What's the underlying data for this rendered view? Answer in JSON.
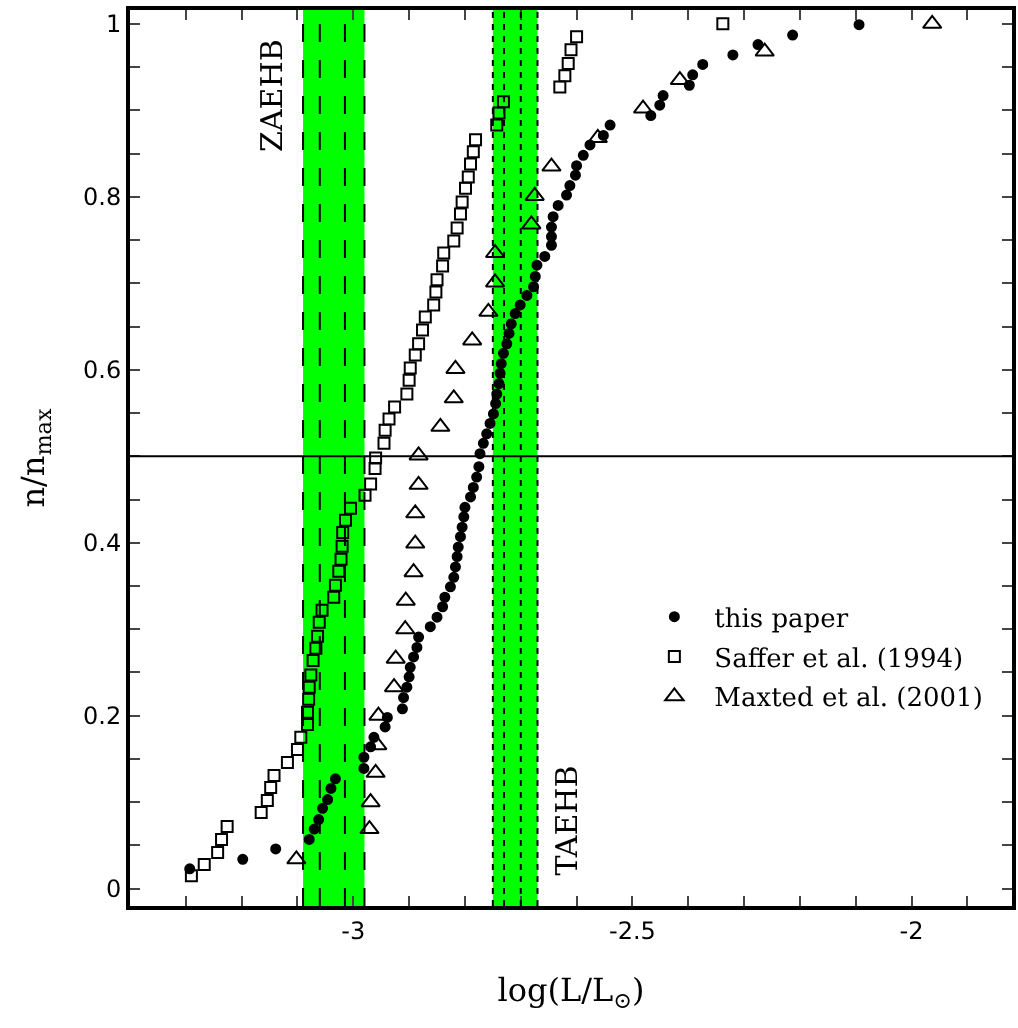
{
  "chart_data": {
    "type": "scatter",
    "xlabel": "log(L/L$_{⊙}$)",
    "ylabel": "n/n$_{max}$",
    "xlim": [
      -3.4,
      -1.82
    ],
    "ylim": [
      -0.02,
      1.016
    ],
    "xticks": [
      {
        "value": -3.4,
        "label": null
      },
      {
        "value": -3.3,
        "label": null
      },
      {
        "value": -3.2,
        "label": null
      },
      {
        "value": -3.1,
        "label": null
      },
      -3,
      {
        "value": -2.9,
        "label": null
      },
      {
        "value": -2.8,
        "label": null
      },
      {
        "value": -2.7,
        "label": null
      },
      {
        "value": -2.6,
        "label": null
      },
      -2.5,
      {
        "value": -2.4,
        "label": null
      },
      {
        "value": -2.3,
        "label": null
      },
      {
        "value": -2.2,
        "label": null
      },
      {
        "value": -2.1,
        "label": null
      },
      -2,
      {
        "value": -1.9,
        "label": null
      }
    ],
    "yticks": [
      0,
      {
        "value": 0.05,
        "label": null
      },
      {
        "value": 0.1,
        "label": null
      },
      {
        "value": 0.15,
        "label": null
      },
      0.2,
      {
        "value": 0.25,
        "label": null
      },
      {
        "value": 0.3,
        "label": null
      },
      {
        "value": 0.35,
        "label": null
      },
      0.4,
      {
        "value": 0.45,
        "label": null
      },
      {
        "value": 0.5,
        "label": null
      },
      {
        "value": 0.55,
        "label": null
      },
      0.6,
      {
        "value": 0.65,
        "label": null
      },
      {
        "value": 0.7,
        "label": null
      },
      {
        "value": 0.75,
        "label": null
      },
      0.8,
      {
        "value": 0.85,
        "label": null
      },
      {
        "value": 0.9,
        "label": null
      },
      {
        "value": 0.95,
        "label": null
      },
      1
    ],
    "grid": false,
    "legend": "bottom right",
    "bands": [
      {
        "axis": "x",
        "from": -3.09,
        "to": -2.98,
        "label": "ZAEHB",
        "color": "#00ff00"
      },
      {
        "axis": "x",
        "from": -2.75,
        "to": -2.67,
        "label": "TAEHB",
        "color": "#00ff00"
      }
    ],
    "ref_lines": [
      {
        "axis": "y",
        "value": 0.5,
        "line_style": "solid"
      },
      {
        "axis": "x",
        "value": -3.09,
        "line_style": "dashed"
      },
      {
        "axis": "x",
        "value": -3.06,
        "line_style": "dashed"
      },
      {
        "axis": "x",
        "value": -3.015,
        "line_style": "dashed"
      },
      {
        "axis": "x",
        "value": -2.98,
        "line_style": "dashed"
      },
      {
        "axis": "x",
        "value": -2.75,
        "line_style": "dotted"
      },
      {
        "axis": "x",
        "value": -2.73,
        "line_style": "dotted"
      },
      {
        "axis": "x",
        "value": -2.7,
        "line_style": "dotted"
      },
      {
        "axis": "x",
        "value": -2.67,
        "line_style": "dotted"
      }
    ],
    "series": [
      {
        "name": "this paper",
        "color": "#000000",
        "marker": "circle",
        "x": [
          -3.293,
          -3.198,
          -3.139,
          -3.079,
          -3.07,
          -3.062,
          -3.055,
          -3.046,
          -3.04,
          -3.032,
          -2.981,
          -2.981,
          -2.969,
          -2.963,
          -2.943,
          -2.939,
          -2.912,
          -2.91,
          -2.904,
          -2.9,
          -2.898,
          -2.892,
          -2.886,
          -2.883,
          -2.862,
          -2.85,
          -2.84,
          -2.836,
          -2.826,
          -2.82,
          -2.817,
          -2.814,
          -2.812,
          -2.808,
          -2.805,
          -2.802,
          -2.8,
          -2.79,
          -2.785,
          -2.779,
          -2.775,
          -2.773,
          -2.767,
          -2.761,
          -2.755,
          -2.749,
          -2.745,
          -2.743,
          -2.739,
          -2.737,
          -2.735,
          -2.731,
          -2.725,
          -2.721,
          -2.717,
          -2.71,
          -2.701,
          -2.689,
          -2.677,
          -2.674,
          -2.671,
          -2.657,
          -2.645,
          -2.645,
          -2.645,
          -2.642,
          -2.633,
          -2.618,
          -2.612,
          -2.602,
          -2.6,
          -2.588,
          -2.576,
          -2.552,
          -2.54,
          -2.467,
          -2.451,
          -2.445,
          -2.398,
          -2.392,
          -2.374,
          -2.32,
          -2.275,
          -2.213,
          -2.094
        ],
        "values": [
          0.023,
          0.034,
          0.046,
          0.057,
          0.069,
          0.08,
          0.093,
          0.103,
          0.116,
          0.127,
          0.139,
          0.152,
          0.164,
          0.175,
          0.187,
          0.198,
          0.208,
          0.221,
          0.233,
          0.245,
          0.256,
          0.268,
          0.279,
          0.291,
          0.303,
          0.314,
          0.326,
          0.337,
          0.349,
          0.36,
          0.372,
          0.384,
          0.395,
          0.407,
          0.418,
          0.43,
          0.441,
          0.453,
          0.464,
          0.476,
          0.488,
          0.503,
          0.515,
          0.526,
          0.538,
          0.549,
          0.561,
          0.572,
          0.584,
          0.596,
          0.607,
          0.619,
          0.63,
          0.642,
          0.653,
          0.665,
          0.675,
          0.686,
          0.696,
          0.708,
          0.721,
          0.731,
          0.744,
          0.754,
          0.765,
          0.777,
          0.79,
          0.802,
          0.813,
          0.825,
          0.836,
          0.848,
          0.86,
          0.871,
          0.883,
          0.894,
          0.906,
          0.917,
          0.929,
          0.941,
          0.953,
          0.964,
          0.976,
          0.987,
          0.999
        ]
      },
      {
        "name": "Saffer et al. (1994)",
        "color": "#000000",
        "marker": "square",
        "x": [
          -3.29,
          -3.267,
          -3.243,
          -3.236,
          -3.226,
          -3.165,
          -3.154,
          -3.148,
          -3.142,
          -3.118,
          -3.1,
          -3.094,
          -3.082,
          -3.082,
          -3.08,
          -3.079,
          -3.076,
          -3.072,
          -3.067,
          -3.064,
          -3.061,
          -3.056,
          -3.035,
          -3.032,
          -3.026,
          -3.022,
          -3.02,
          -3.019,
          -3.014,
          -3.005,
          -2.979,
          -2.969,
          -2.961,
          -2.96,
          -2.945,
          -2.943,
          -2.936,
          -2.926,
          -2.904,
          -2.9,
          -2.898,
          -2.889,
          -2.883,
          -2.876,
          -2.871,
          -2.856,
          -2.852,
          -2.85,
          -2.84,
          -2.838,
          -2.82,
          -2.814,
          -2.808,
          -2.805,
          -2.799,
          -2.794,
          -2.79,
          -2.785,
          -2.781,
          -2.743,
          -2.739,
          -2.731,
          -2.63,
          -2.621,
          -2.615,
          -2.61,
          -2.6,
          -2.338
        ],
        "values": [
          0.015,
          0.028,
          0.042,
          0.057,
          0.072,
          0.088,
          0.102,
          0.117,
          0.131,
          0.146,
          0.161,
          0.175,
          0.19,
          0.204,
          0.219,
          0.233,
          0.247,
          0.264,
          0.278,
          0.292,
          0.308,
          0.322,
          0.337,
          0.351,
          0.367,
          0.381,
          0.396,
          0.412,
          0.426,
          0.44,
          0.455,
          0.468,
          0.486,
          0.498,
          0.515,
          0.53,
          0.543,
          0.557,
          0.572,
          0.588,
          0.602,
          0.617,
          0.63,
          0.646,
          0.661,
          0.675,
          0.69,
          0.704,
          0.72,
          0.735,
          0.749,
          0.764,
          0.78,
          0.794,
          0.81,
          0.823,
          0.838,
          0.852,
          0.866,
          0.883,
          0.897,
          0.91,
          0.927,
          0.94,
          0.954,
          0.97,
          0.985,
          1.0
        ]
      },
      {
        "name": "Maxted et al. (2001)",
        "color": "#000000",
        "marker": "triangle",
        "x": [
          -3.102,
          -2.971,
          -2.969,
          -2.96,
          -2.957,
          -2.955,
          -2.927,
          -2.924,
          -2.907,
          -2.906,
          -2.892,
          -2.889,
          -2.889,
          -2.883,
          -2.883,
          -2.844,
          -2.82,
          -2.817,
          -2.787,
          -2.758,
          -2.746,
          -2.746,
          -2.681,
          -2.675,
          -2.645,
          -2.562,
          -2.481,
          -2.415,
          -2.263,
          -1.963
        ],
        "values": [
          0.034,
          0.069,
          0.1,
          0.134,
          0.166,
          0.2,
          0.233,
          0.266,
          0.3,
          0.333,
          0.366,
          0.399,
          0.434,
          0.467,
          0.501,
          0.534,
          0.567,
          0.601,
          0.634,
          0.667,
          0.701,
          0.735,
          0.768,
          0.801,
          0.835,
          0.868,
          0.902,
          0.935,
          0.968,
          1.0
        ]
      }
    ]
  }
}
